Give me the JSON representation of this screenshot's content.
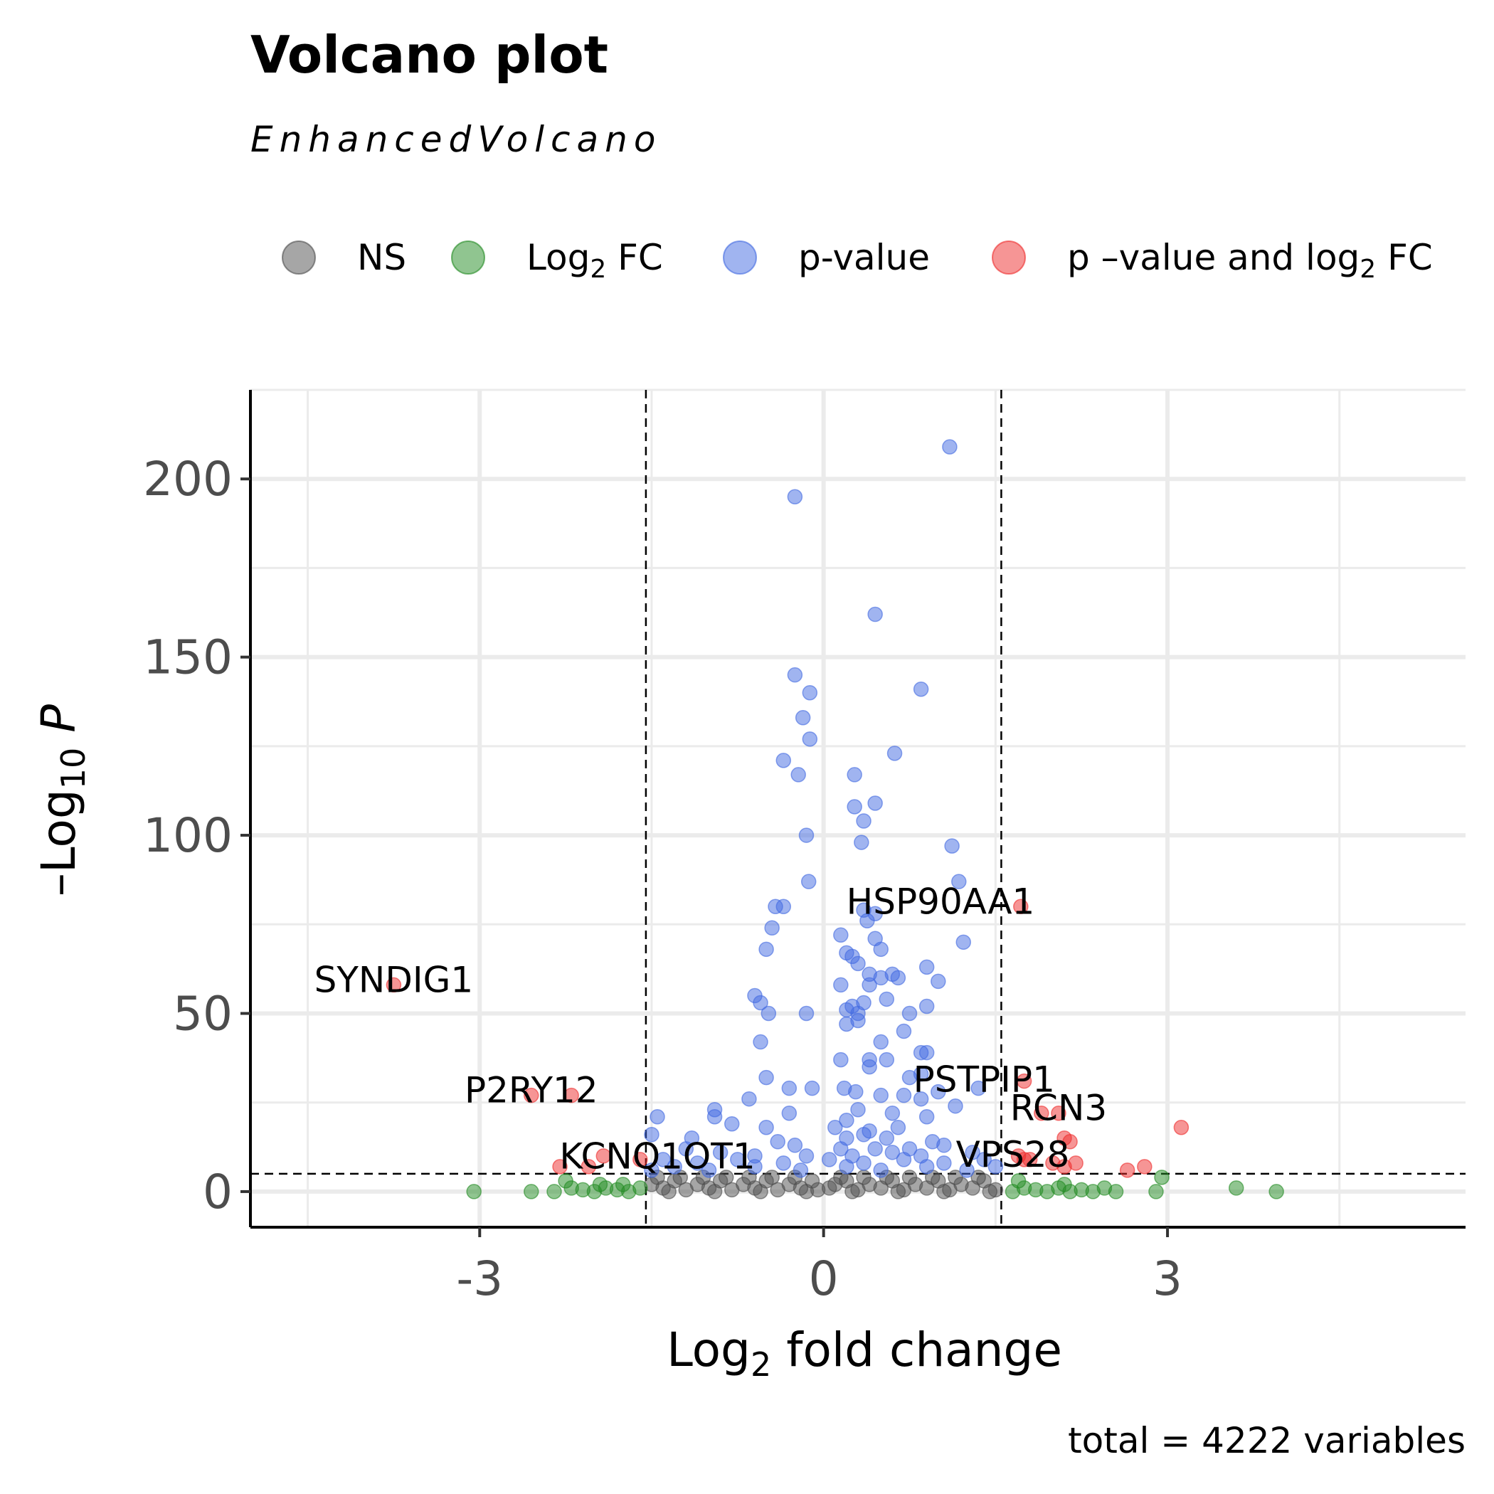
{
  "chart_data": {
    "type": "scatter",
    "title": "Volcano plot",
    "subtitle": "EnhancedVolcano",
    "caption": "total = 4222 variables",
    "xlabel": {
      "base": "Log",
      "sub": "2",
      "rest": " fold change"
    },
    "ylabel": {
      "prefix": "–Log",
      "sub": "10",
      "italic": "P"
    },
    "xlim": [
      -5.0,
      5.6
    ],
    "ylim": [
      -10,
      225
    ],
    "x_ticks": [
      -3,
      0,
      3
    ],
    "x_tick_labels": [
      "-3",
      "0",
      "3"
    ],
    "y_ticks": [
      0,
      50,
      100,
      150,
      200
    ],
    "y_tick_labels": [
      "0",
      "50",
      "100",
      "150",
      "200"
    ],
    "x_minor_gridlines": [
      -4.5,
      -1.5,
      1.5,
      4.5
    ],
    "y_minor_gridlines": [
      25,
      75,
      125,
      175,
      225
    ],
    "cutoffs": {
      "log2fc": 1.55,
      "neg_log10_p": 5
    },
    "grid": true,
    "legend": {
      "position": "top",
      "entries": [
        {
          "key": "NS",
          "parts": [
            {
              "t": "NS"
            }
          ],
          "color": "#4d4d4d"
        },
        {
          "key": "log2fc",
          "parts": [
            {
              "t": "Log"
            },
            {
              "t": "2",
              "sub": true
            },
            {
              "t": " FC"
            }
          ],
          "color": "#228b22"
        },
        {
          "key": "pvalue",
          "parts": [
            {
              "t": "p-value"
            }
          ],
          "color": "#4169e1"
        },
        {
          "key": "both",
          "parts": [
            {
              "t": "p –value and log"
            },
            {
              "t": "2",
              "sub": true
            },
            {
              "t": " FC"
            }
          ],
          "color": "#ee2c2c"
        }
      ]
    },
    "series": [
      {
        "category": "NS",
        "points": [
          [
            -1.5,
            2
          ],
          [
            -1.4,
            1
          ],
          [
            -1.3,
            3
          ],
          [
            -1.2,
            0.5
          ],
          [
            -1.1,
            2
          ],
          [
            -1.0,
            1
          ],
          [
            -0.9,
            3
          ],
          [
            -0.8,
            0.5
          ],
          [
            -0.7,
            2
          ],
          [
            -0.6,
            1
          ],
          [
            -0.5,
            3
          ],
          [
            -0.4,
            0.5
          ],
          [
            -0.3,
            2
          ],
          [
            -0.2,
            1
          ],
          [
            -0.1,
            3
          ],
          [
            -0.05,
            0.5
          ],
          [
            0.05,
            1
          ],
          [
            0.1,
            2
          ],
          [
            0.2,
            3
          ],
          [
            0.3,
            0.5
          ],
          [
            0.4,
            2
          ],
          [
            0.5,
            1
          ],
          [
            0.6,
            3
          ],
          [
            0.7,
            0.5
          ],
          [
            0.8,
            2
          ],
          [
            0.9,
            1
          ],
          [
            1.0,
            3
          ],
          [
            1.1,
            0.5
          ],
          [
            1.2,
            2
          ],
          [
            1.3,
            1
          ],
          [
            1.4,
            3
          ],
          [
            1.5,
            0.5
          ],
          [
            -1.45,
            4
          ],
          [
            -1.25,
            4
          ],
          [
            -1.05,
            4
          ],
          [
            -0.85,
            4
          ],
          [
            -0.65,
            4
          ],
          [
            -0.45,
            4
          ],
          [
            -0.25,
            4
          ],
          [
            0.15,
            4
          ],
          [
            0.35,
            4
          ],
          [
            0.55,
            4
          ],
          [
            0.75,
            4
          ],
          [
            0.95,
            4
          ],
          [
            1.15,
            4
          ],
          [
            1.35,
            4
          ],
          [
            -1.35,
            0
          ],
          [
            -0.95,
            0
          ],
          [
            -0.55,
            0
          ],
          [
            -0.15,
            0
          ],
          [
            0.25,
            0
          ],
          [
            0.65,
            0
          ],
          [
            1.05,
            0
          ],
          [
            1.45,
            0
          ]
        ]
      },
      {
        "category": "log2fc",
        "points": [
          [
            -3.05,
            0
          ],
          [
            -2.55,
            0
          ],
          [
            -2.35,
            0
          ],
          [
            -2.2,
            1
          ],
          [
            -2.1,
            0.5
          ],
          [
            -2.0,
            0
          ],
          [
            -1.9,
            1
          ],
          [
            -1.8,
            0.5
          ],
          [
            -1.7,
            0
          ],
          [
            -1.6,
            1
          ],
          [
            -2.25,
            3
          ],
          [
            -1.95,
            2
          ],
          [
            -1.75,
            2
          ],
          [
            1.65,
            0
          ],
          [
            1.75,
            1
          ],
          [
            1.85,
            0.5
          ],
          [
            1.95,
            0
          ],
          [
            2.05,
            1
          ],
          [
            2.15,
            0
          ],
          [
            2.25,
            0.5
          ],
          [
            2.35,
            0
          ],
          [
            2.45,
            1
          ],
          [
            2.55,
            0
          ],
          [
            2.9,
            0
          ],
          [
            2.95,
            4
          ],
          [
            3.6,
            1
          ],
          [
            3.95,
            0
          ],
          [
            1.7,
            3
          ],
          [
            2.1,
            2
          ]
        ]
      },
      {
        "category": "pvalue",
        "points": [
          [
            1.1,
            209
          ],
          [
            -0.25,
            195
          ],
          [
            0.45,
            162
          ],
          [
            -0.25,
            145
          ],
          [
            -0.12,
            140
          ],
          [
            0.85,
            141
          ],
          [
            -0.18,
            133
          ],
          [
            -0.12,
            127
          ],
          [
            0.62,
            123
          ],
          [
            -0.35,
            121
          ],
          [
            -0.22,
            117
          ],
          [
            0.27,
            117
          ],
          [
            0.27,
            108
          ],
          [
            0.45,
            109
          ],
          [
            0.35,
            104
          ],
          [
            -0.15,
            100
          ],
          [
            0.33,
            98
          ],
          [
            1.12,
            97
          ],
          [
            -0.13,
            87
          ],
          [
            1.18,
            87
          ],
          [
            -0.42,
            80
          ],
          [
            -0.35,
            80
          ],
          [
            0.35,
            79
          ],
          [
            0.45,
            78
          ],
          [
            -0.45,
            74
          ],
          [
            0.38,
            76
          ],
          [
            0.15,
            72
          ],
          [
            0.45,
            71
          ],
          [
            1.22,
            70
          ],
          [
            -0.5,
            68
          ],
          [
            0.2,
            67
          ],
          [
            0.25,
            66
          ],
          [
            0.5,
            68
          ],
          [
            0.3,
            64
          ],
          [
            0.9,
            63
          ],
          [
            0.4,
            61
          ],
          [
            0.6,
            61
          ],
          [
            0.5,
            60
          ],
          [
            0.65,
            60
          ],
          [
            1.0,
            59
          ],
          [
            0.15,
            58
          ],
          [
            0.4,
            58
          ],
          [
            -0.6,
            55
          ],
          [
            -0.55,
            53
          ],
          [
            0.55,
            54
          ],
          [
            0.35,
            53
          ],
          [
            0.25,
            52
          ],
          [
            0.9,
            52
          ],
          [
            0.2,
            51
          ],
          [
            -0.48,
            50
          ],
          [
            -0.15,
            50
          ],
          [
            0.3,
            50
          ],
          [
            0.75,
            50
          ],
          [
            0.2,
            47
          ],
          [
            0.3,
            48
          ],
          [
            0.7,
            45
          ],
          [
            -0.55,
            42
          ],
          [
            0.5,
            42
          ],
          [
            0.85,
            39
          ],
          [
            0.9,
            39
          ],
          [
            0.15,
            37
          ],
          [
            0.4,
            37
          ],
          [
            0.55,
            37
          ],
          [
            0.4,
            35
          ],
          [
            0.85,
            33
          ],
          [
            0.75,
            32
          ],
          [
            -0.5,
            32
          ],
          [
            -0.3,
            29
          ],
          [
            -0.1,
            29
          ],
          [
            0.18,
            29
          ],
          [
            0.28,
            28
          ],
          [
            1.0,
            28
          ],
          [
            1.35,
            29
          ],
          [
            -0.65,
            26
          ],
          [
            0.5,
            27
          ],
          [
            0.7,
            27
          ],
          [
            0.85,
            26
          ],
          [
            1.15,
            24
          ],
          [
            -0.95,
            23
          ],
          [
            -0.3,
            22
          ],
          [
            0.3,
            23
          ],
          [
            0.6,
            22
          ],
          [
            0.9,
            21
          ],
          [
            -1.45,
            21
          ],
          [
            -0.95,
            21
          ],
          [
            0.2,
            20
          ],
          [
            -0.8,
            19
          ],
          [
            -0.5,
            18
          ],
          [
            0.1,
            18
          ],
          [
            0.4,
            17
          ],
          [
            0.65,
            18
          ],
          [
            -1.5,
            16
          ],
          [
            -1.15,
            15
          ],
          [
            -0.4,
            14
          ],
          [
            0.2,
            15
          ],
          [
            0.35,
            16
          ],
          [
            0.55,
            15
          ],
          [
            0.95,
            14
          ],
          [
            -1.2,
            12
          ],
          [
            -0.25,
            13
          ],
          [
            0.15,
            12
          ],
          [
            0.45,
            12
          ],
          [
            0.75,
            12
          ],
          [
            1.05,
            13
          ],
          [
            -0.9,
            11
          ],
          [
            -0.6,
            10
          ],
          [
            -0.15,
            10
          ],
          [
            0.25,
            10
          ],
          [
            0.6,
            11
          ],
          [
            0.85,
            10
          ],
          [
            1.3,
            11
          ],
          [
            -1.4,
            9
          ],
          [
            -1.1,
            8
          ],
          [
            -0.75,
            9
          ],
          [
            -0.35,
            8
          ],
          [
            0.05,
            9
          ],
          [
            0.35,
            8
          ],
          [
            0.7,
            9
          ],
          [
            1.05,
            8
          ],
          [
            1.4,
            9
          ],
          [
            -1.3,
            7
          ],
          [
            -1.0,
            6
          ],
          [
            -0.6,
            7
          ],
          [
            -0.2,
            6
          ],
          [
            0.2,
            7
          ],
          [
            0.5,
            6
          ],
          [
            0.9,
            7
          ],
          [
            1.25,
            6
          ],
          [
            1.5,
            7
          ],
          [
            -1.5,
            6
          ]
        ]
      },
      {
        "category": "both",
        "points": [
          [
            -3.75,
            58
          ],
          [
            -2.55,
            27
          ],
          [
            -2.2,
            27
          ],
          [
            -1.92,
            10
          ],
          [
            -2.05,
            7
          ],
          [
            -1.6,
            9
          ],
          [
            -2.3,
            7
          ],
          [
            1.72,
            80
          ],
          [
            1.75,
            31
          ],
          [
            1.9,
            22
          ],
          [
            2.05,
            22
          ],
          [
            2.1,
            15
          ],
          [
            3.12,
            18
          ],
          [
            1.7,
            10
          ],
          [
            1.75,
            9
          ],
          [
            1.8,
            9
          ],
          [
            2.0,
            8
          ],
          [
            2.1,
            7
          ],
          [
            2.2,
            8
          ],
          [
            2.65,
            6
          ],
          [
            2.8,
            7
          ],
          [
            2.15,
            14
          ]
        ]
      }
    ],
    "labels": [
      {
        "text": "HSP90AA1",
        "x": 1.72,
        "y": 80,
        "anchor": "middle",
        "dx": -0.7,
        "dy": -2
      },
      {
        "text": "SYNDIG1",
        "x": -3.75,
        "y": 58,
        "anchor": "middle",
        "dx": 0,
        "dy": -2
      },
      {
        "text": "PSTPIP1",
        "x": 1.75,
        "y": 31,
        "anchor": "middle",
        "dx": -0.35,
        "dy": -3
      },
      {
        "text": "RCN3",
        "x": 2.05,
        "y": 22,
        "anchor": "middle",
        "dx": 0,
        "dy": -2
      },
      {
        "text": "P2RY12",
        "x": -2.55,
        "y": 27,
        "anchor": "middle",
        "dx": 0,
        "dy": -2
      },
      {
        "text": "KCNQ1OT1",
        "x": -2.05,
        "y": 7,
        "anchor": "middle",
        "dx": 0.6,
        "dy": -0.5
      },
      {
        "text": "VPS28",
        "x": 1.75,
        "y": 9,
        "anchor": "middle",
        "dx": -0.1,
        "dy": -2
      }
    ]
  }
}
